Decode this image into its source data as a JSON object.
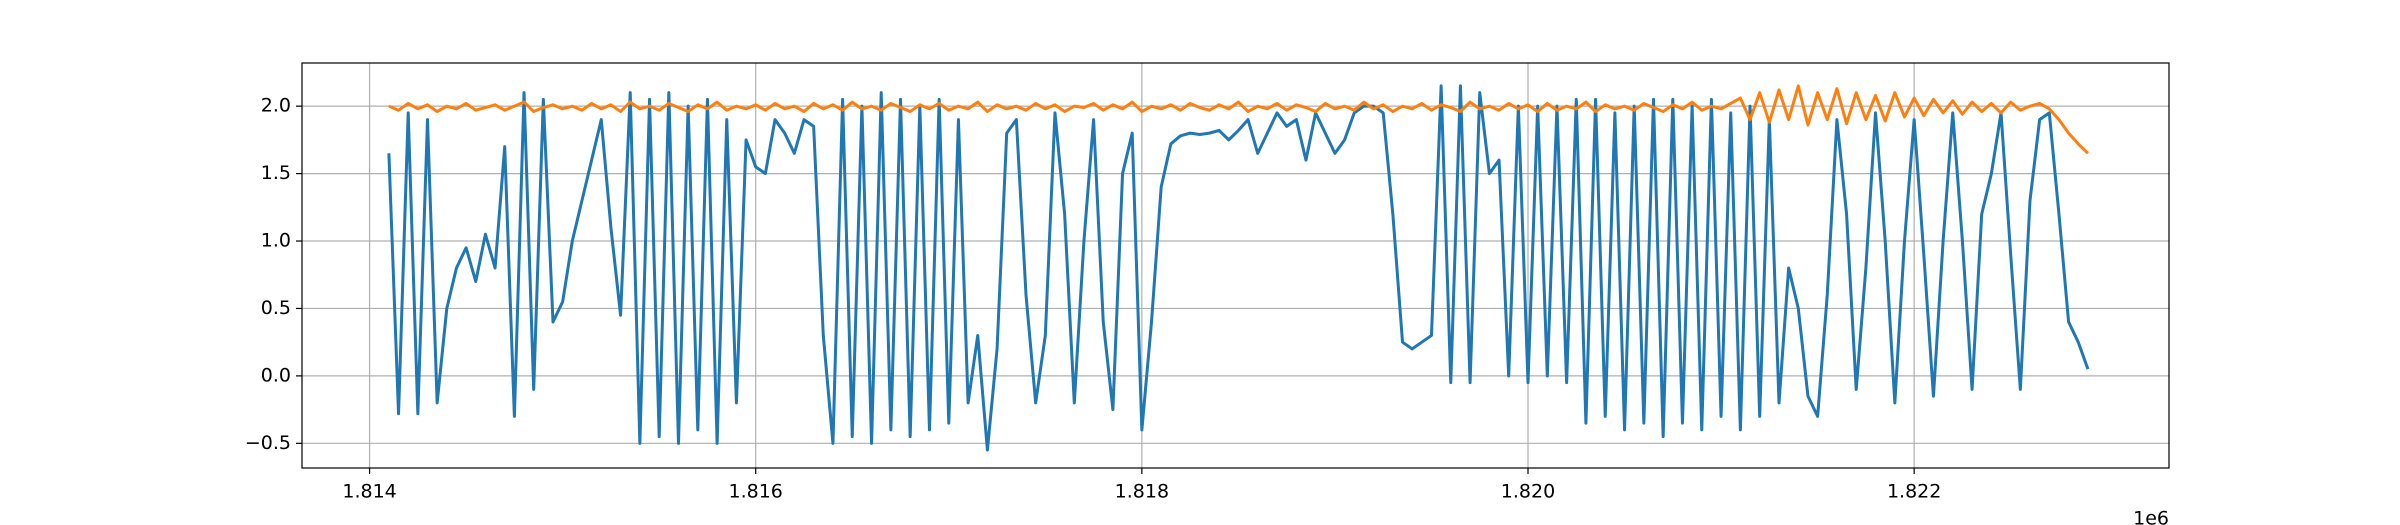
{
  "chart_data": {
    "type": "line",
    "x": [
      1814100,
      1814150,
      1814200,
      1814250,
      1814300,
      1814350,
      1814400,
      1814450,
      1814500,
      1814550,
      1814600,
      1814650,
      1814700,
      1814750,
      1814800,
      1814850,
      1814900,
      1814950,
      1815000,
      1815050,
      1815100,
      1815150,
      1815200,
      1815250,
      1815300,
      1815350,
      1815400,
      1815450,
      1815500,
      1815550,
      1815600,
      1815650,
      1815700,
      1815750,
      1815800,
      1815850,
      1815900,
      1815950,
      1816000,
      1816050,
      1816100,
      1816150,
      1816200,
      1816250,
      1816300,
      1816350,
      1816400,
      1816450,
      1816500,
      1816550,
      1816600,
      1816650,
      1816700,
      1816750,
      1816800,
      1816850,
      1816900,
      1816950,
      1817000,
      1817050,
      1817100,
      1817150,
      1817200,
      1817250,
      1817300,
      1817350,
      1817400,
      1817450,
      1817500,
      1817550,
      1817600,
      1817650,
      1817700,
      1817750,
      1817800,
      1817850,
      1817900,
      1817950,
      1818000,
      1818050,
      1818100,
      1818150,
      1818200,
      1818250,
      1818300,
      1818350,
      1818400,
      1818450,
      1818500,
      1818550,
      1818600,
      1818650,
      1818700,
      1818750,
      1818800,
      1818850,
      1818900,
      1818950,
      1819000,
      1819050,
      1819100,
      1819150,
      1819200,
      1819250,
      1819300,
      1819350,
      1819400,
      1819450,
      1819500,
      1819550,
      1819600,
      1819650,
      1819700,
      1819750,
      1819800,
      1819850,
      1819900,
      1819950,
      1820000,
      1820050,
      1820100,
      1820150,
      1820200,
      1820250,
      1820300,
      1820350,
      1820400,
      1820450,
      1820500,
      1820550,
      1820600,
      1820650,
      1820700,
      1820750,
      1820800,
      1820850,
      1820900,
      1820950,
      1821000,
      1821050,
      1821100,
      1821150,
      1821200,
      1821250,
      1821300,
      1821350,
      1821400,
      1821450,
      1821500,
      1821550,
      1821600,
      1821650,
      1821700,
      1821750,
      1821800,
      1821850,
      1821900,
      1821950,
      1822000,
      1822050,
      1822100,
      1822150,
      1822200,
      1822250,
      1822300,
      1822350,
      1822400,
      1822450,
      1822500,
      1822550,
      1822600,
      1822650,
      1822700,
      1822750,
      1822800,
      1822850,
      1822900
    ],
    "series": [
      {
        "color": "#1f77b4",
        "values": [
          1.65,
          -0.28,
          1.95,
          -0.28,
          1.9,
          -0.2,
          0.5,
          0.8,
          0.95,
          0.7,
          1.05,
          0.8,
          1.7,
          -0.3,
          2.1,
          -0.1,
          2.05,
          0.4,
          0.55,
          1.0,
          1.3,
          1.6,
          1.9,
          1.1,
          0.45,
          2.1,
          -0.5,
          2.05,
          -0.45,
          2.1,
          -0.5,
          2.0,
          -0.4,
          2.05,
          -0.5,
          1.9,
          -0.2,
          1.75,
          1.55,
          1.5,
          1.9,
          1.8,
          1.65,
          1.9,
          1.85,
          0.3,
          -0.5,
          2.05,
          -0.45,
          2.0,
          -0.5,
          2.1,
          -0.4,
          2.05,
          -0.45,
          2.0,
          -0.4,
          2.05,
          -0.35,
          1.9,
          -0.2,
          0.3,
          -0.55,
          0.2,
          1.8,
          1.9,
          0.6,
          -0.2,
          0.3,
          1.95,
          1.2,
          -0.2,
          1.0,
          1.9,
          0.4,
          -0.25,
          1.5,
          1.8,
          -0.4,
          0.4,
          1.4,
          1.72,
          1.78,
          1.8,
          1.79,
          1.8,
          1.82,
          1.75,
          1.82,
          1.9,
          1.65,
          1.8,
          1.95,
          1.85,
          1.9,
          1.6,
          1.95,
          1.8,
          1.65,
          1.75,
          1.95,
          2.0,
          2.0,
          1.95,
          1.2,
          0.25,
          0.2,
          0.25,
          0.3,
          2.15,
          -0.05,
          2.15,
          -0.05,
          2.1,
          1.5,
          1.6,
          0.0,
          2.0,
          -0.05,
          2.0,
          0.0,
          2.0,
          -0.05,
          2.05,
          -0.35,
          2.05,
          -0.3,
          1.95,
          -0.4,
          2.0,
          -0.35,
          2.05,
          -0.45,
          2.05,
          -0.35,
          2.0,
          -0.4,
          2.05,
          -0.3,
          1.95,
          -0.4,
          2.0,
          -0.3,
          1.9,
          -0.2,
          0.8,
          0.5,
          -0.15,
          -0.3,
          0.6,
          1.9,
          1.2,
          -0.1,
          0.8,
          1.95,
          1.0,
          -0.2,
          1.0,
          1.9,
          0.9,
          -0.15,
          1.0,
          1.95,
          1.0,
          -0.1,
          1.2,
          1.5,
          1.95,
          0.9,
          -0.1,
          1.3,
          1.9,
          1.95,
          1.2,
          0.4,
          0.25,
          0.05
        ]
      },
      {
        "color": "#ff7f0e",
        "values": [
          2.0,
          1.97,
          2.02,
          1.98,
          2.01,
          1.96,
          2.0,
          1.98,
          2.02,
          1.97,
          1.99,
          2.01,
          1.97,
          2.0,
          2.03,
          1.96,
          1.99,
          2.01,
          1.98,
          2.0,
          1.97,
          2.02,
          1.98,
          2.01,
          1.96,
          2.03,
          1.98,
          2.0,
          1.97,
          2.02,
          1.99,
          1.96,
          2.01,
          1.98,
          2.03,
          1.97,
          2.0,
          1.98,
          2.01,
          1.97,
          2.02,
          1.98,
          2.0,
          1.96,
          2.02,
          1.98,
          2.01,
          1.97,
          2.03,
          1.98,
          2.0,
          1.97,
          2.02,
          1.99,
          1.96,
          2.01,
          1.98,
          2.02,
          1.97,
          2.0,
          1.98,
          2.03,
          1.96,
          2.01,
          1.98,
          2.0,
          1.97,
          2.02,
          1.98,
          2.01,
          1.96,
          2.0,
          1.99,
          2.02,
          1.97,
          2.01,
          1.98,
          2.03,
          1.96,
          2.0,
          1.98,
          2.01,
          1.97,
          2.02,
          1.99,
          1.97,
          2.01,
          1.98,
          2.03,
          1.96,
          2.0,
          1.98,
          2.02,
          1.97,
          2.01,
          1.99,
          1.96,
          2.02,
          1.98,
          2.0,
          1.97,
          2.03,
          1.98,
          2.01,
          1.96,
          2.0,
          1.98,
          2.02,
          1.97,
          2.01,
          1.99,
          1.96,
          2.03,
          1.98,
          2.0,
          1.97,
          2.02,
          1.98,
          2.01,
          1.96,
          2.02,
          1.97,
          2.0,
          1.98,
          2.03,
          1.96,
          2.01,
          1.98,
          2.0,
          1.97,
          2.02,
          1.99,
          1.96,
          2.01,
          1.98,
          2.03,
          1.97,
          2.0,
          1.98,
          2.02,
          2.06,
          1.9,
          2.1,
          1.88,
          2.12,
          1.9,
          2.15,
          1.86,
          2.1,
          1.9,
          2.13,
          1.87,
          2.1,
          1.9,
          2.08,
          1.89,
          2.1,
          1.92,
          2.06,
          1.93,
          2.05,
          1.95,
          2.04,
          1.94,
          2.03,
          1.96,
          2.02,
          1.95,
          2.03,
          1.97,
          2.0,
          2.02,
          1.98,
          1.9,
          1.8,
          1.72,
          1.65
        ]
      }
    ],
    "xlim": [
      1813650,
      1823320
    ],
    "ylim": [
      -0.683,
      2.32
    ],
    "xticks": [
      {
        "value": 1814000,
        "label": "1.814"
      },
      {
        "value": 1816000,
        "label": "1.816"
      },
      {
        "value": 1818000,
        "label": "1.818"
      },
      {
        "value": 1820000,
        "label": "1.820"
      },
      {
        "value": 1822000,
        "label": "1.822"
      }
    ],
    "yticks": [
      {
        "value": -0.5,
        "label": "−0.5"
      },
      {
        "value": 0.0,
        "label": "0.0"
      },
      {
        "value": 0.5,
        "label": "0.5"
      },
      {
        "value": 1.0,
        "label": "1.0"
      },
      {
        "value": 1.5,
        "label": "1.5"
      },
      {
        "value": 2.0,
        "label": "2.0"
      }
    ],
    "x_offset_label": "1e6",
    "grid": true
  }
}
